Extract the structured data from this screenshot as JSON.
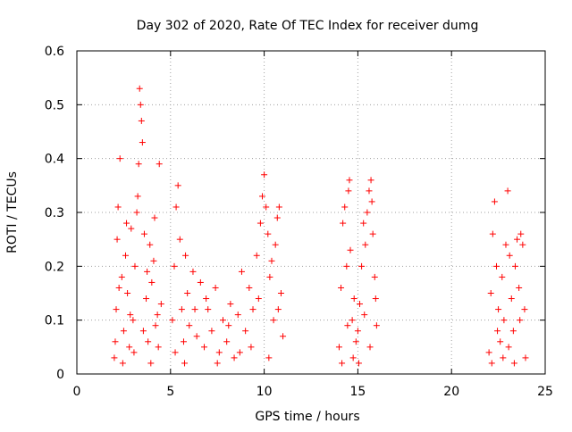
{
  "chart_data": {
    "type": "scatter",
    "title": "Day 302 of 2020, Rate Of TEC Index for receiver dumg",
    "xlabel": "GPS time / hours",
    "ylabel": "ROTI / TECUs",
    "xlim": [
      0,
      25
    ],
    "ylim": [
      0,
      0.6
    ],
    "x_ticks": [
      0,
      5,
      10,
      15,
      20,
      25
    ],
    "x_tick_labels": [
      "0",
      "5",
      "10",
      "15",
      "20",
      "25"
    ],
    "y_ticks": [
      0,
      0.1,
      0.2,
      0.3,
      0.4,
      0.5,
      0.6
    ],
    "y_tick_labels": [
      "0",
      "0.1",
      "0.2",
      "0.3",
      "0.4",
      "0.5",
      "0.6"
    ],
    "grid": true,
    "marker": "+",
    "color": "#ff0000",
    "series": [
      {
        "points": [
          [
            2.0,
            0.03
          ],
          [
            2.1,
            0.12
          ],
          [
            2.15,
            0.25
          ],
          [
            2.2,
            0.31
          ],
          [
            2.3,
            0.4
          ],
          [
            2.4,
            0.18
          ],
          [
            2.5,
            0.08
          ],
          [
            2.6,
            0.22
          ],
          [
            2.7,
            0.15
          ],
          [
            2.8,
            0.05
          ],
          [
            2.9,
            0.27
          ],
          [
            3.0,
            0.1
          ],
          [
            3.1,
            0.2
          ],
          [
            3.2,
            0.3
          ],
          [
            3.3,
            0.39
          ],
          [
            3.35,
            0.53
          ],
          [
            3.4,
            0.5
          ],
          [
            3.45,
            0.47
          ],
          [
            3.5,
            0.43
          ],
          [
            3.6,
            0.26
          ],
          [
            3.7,
            0.14
          ],
          [
            3.8,
            0.06
          ],
          [
            3.9,
            0.24
          ],
          [
            4.0,
            0.17
          ],
          [
            4.1,
            0.21
          ],
          [
            4.2,
            0.09
          ],
          [
            4.3,
            0.11
          ],
          [
            4.4,
            0.39
          ],
          [
            4.5,
            0.13
          ],
          [
            2.05,
            0.06
          ],
          [
            2.25,
            0.16
          ],
          [
            2.45,
            0.02
          ],
          [
            2.65,
            0.28
          ],
          [
            2.85,
            0.11
          ],
          [
            3.05,
            0.04
          ],
          [
            3.25,
            0.33
          ],
          [
            3.55,
            0.08
          ],
          [
            3.75,
            0.19
          ],
          [
            3.95,
            0.02
          ],
          [
            4.15,
            0.29
          ],
          [
            4.35,
            0.05
          ],
          [
            5.1,
            0.1
          ],
          [
            5.2,
            0.2
          ],
          [
            5.3,
            0.31
          ],
          [
            5.4,
            0.35
          ],
          [
            5.5,
            0.25
          ],
          [
            5.6,
            0.12
          ],
          [
            5.7,
            0.06
          ],
          [
            5.8,
            0.22
          ],
          [
            5.9,
            0.15
          ],
          [
            6.0,
            0.09
          ],
          [
            6.2,
            0.19
          ],
          [
            6.4,
            0.07
          ],
          [
            6.6,
            0.17
          ],
          [
            6.8,
            0.05
          ],
          [
            7.0,
            0.12
          ],
          [
            7.2,
            0.08
          ],
          [
            7.4,
            0.16
          ],
          [
            7.6,
            0.04
          ],
          [
            7.8,
            0.1
          ],
          [
            8.0,
            0.06
          ],
          [
            8.2,
            0.13
          ],
          [
            8.4,
            0.03
          ],
          [
            8.6,
            0.11
          ],
          [
            8.8,
            0.19
          ],
          [
            9.0,
            0.08
          ],
          [
            9.2,
            0.16
          ],
          [
            9.4,
            0.12
          ],
          [
            9.6,
            0.22
          ],
          [
            9.8,
            0.28
          ],
          [
            9.9,
            0.33
          ],
          [
            10.0,
            0.37
          ],
          [
            10.1,
            0.31
          ],
          [
            10.2,
            0.26
          ],
          [
            10.3,
            0.18
          ],
          [
            10.4,
            0.21
          ],
          [
            10.5,
            0.1
          ],
          [
            10.6,
            0.24
          ],
          [
            10.7,
            0.29
          ],
          [
            10.8,
            0.31
          ],
          [
            10.9,
            0.15
          ],
          [
            11.0,
            0.07
          ],
          [
            5.25,
            0.04
          ],
          [
            5.75,
            0.02
          ],
          [
            6.3,
            0.12
          ],
          [
            6.9,
            0.14
          ],
          [
            7.5,
            0.02
          ],
          [
            8.1,
            0.09
          ],
          [
            8.7,
            0.04
          ],
          [
            9.3,
            0.05
          ],
          [
            9.7,
            0.14
          ],
          [
            10.25,
            0.03
          ],
          [
            10.75,
            0.12
          ],
          [
            14.0,
            0.05
          ],
          [
            14.1,
            0.16
          ],
          [
            14.2,
            0.28
          ],
          [
            14.3,
            0.31
          ],
          [
            14.4,
            0.2
          ],
          [
            14.5,
            0.34
          ],
          [
            14.55,
            0.36
          ],
          [
            14.6,
            0.23
          ],
          [
            14.7,
            0.1
          ],
          [
            14.8,
            0.14
          ],
          [
            14.9,
            0.06
          ],
          [
            15.0,
            0.08
          ],
          [
            15.1,
            0.13
          ],
          [
            15.2,
            0.2
          ],
          [
            15.3,
            0.28
          ],
          [
            15.4,
            0.24
          ],
          [
            15.5,
            0.3
          ],
          [
            15.6,
            0.34
          ],
          [
            15.7,
            0.36
          ],
          [
            15.75,
            0.32
          ],
          [
            15.8,
            0.26
          ],
          [
            15.9,
            0.18
          ],
          [
            16.0,
            0.09
          ],
          [
            14.15,
            0.02
          ],
          [
            14.45,
            0.09
          ],
          [
            14.75,
            0.03
          ],
          [
            15.05,
            0.02
          ],
          [
            15.35,
            0.11
          ],
          [
            15.65,
            0.05
          ],
          [
            15.95,
            0.14
          ],
          [
            22.0,
            0.04
          ],
          [
            22.1,
            0.15
          ],
          [
            22.2,
            0.26
          ],
          [
            22.3,
            0.32
          ],
          [
            22.4,
            0.2
          ],
          [
            22.5,
            0.12
          ],
          [
            22.6,
            0.06
          ],
          [
            22.7,
            0.18
          ],
          [
            22.8,
            0.1
          ],
          [
            22.9,
            0.24
          ],
          [
            23.0,
            0.34
          ],
          [
            23.1,
            0.22
          ],
          [
            23.2,
            0.14
          ],
          [
            23.3,
            0.08
          ],
          [
            23.4,
            0.2
          ],
          [
            23.5,
            0.25
          ],
          [
            23.6,
            0.16
          ],
          [
            23.7,
            0.26
          ],
          [
            23.8,
            0.24
          ],
          [
            23.9,
            0.12
          ],
          [
            22.15,
            0.02
          ],
          [
            22.45,
            0.08
          ],
          [
            22.75,
            0.03
          ],
          [
            23.05,
            0.05
          ],
          [
            23.35,
            0.02
          ],
          [
            23.65,
            0.1
          ],
          [
            23.95,
            0.03
          ]
        ]
      }
    ]
  }
}
